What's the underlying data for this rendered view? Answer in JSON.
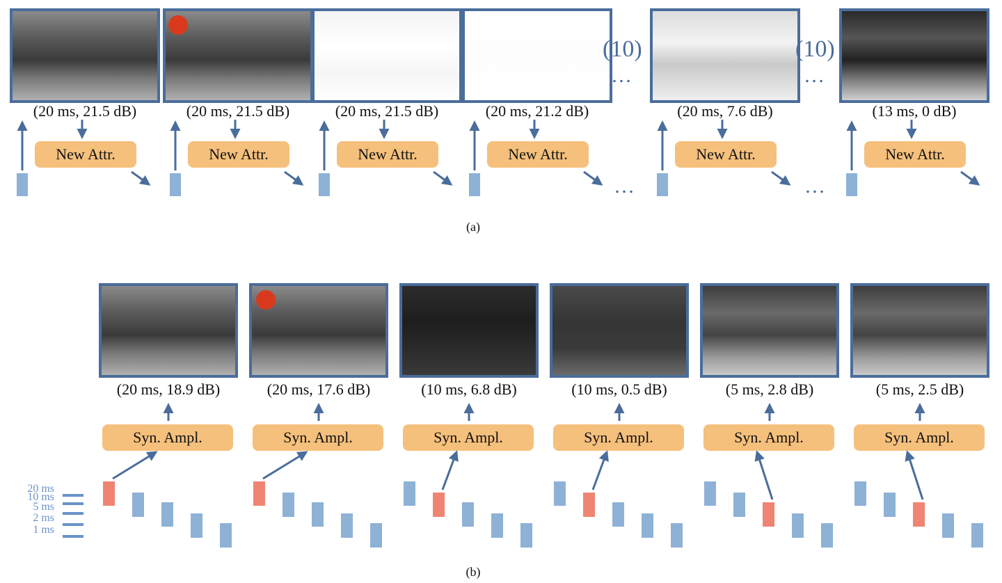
{
  "panel_a": {
    "label": "(a)",
    "frames": [
      {
        "caption": "(20 ms, 21.5 dB)",
        "box": "New Attr.",
        "tone": "normal",
        "marker": false
      },
      {
        "caption": "(20 ms, 21.5 dB)",
        "box": "New Attr.",
        "tone": "normal",
        "marker": true
      },
      {
        "caption": "(20 ms, 21.5 dB)",
        "box": "New Attr.",
        "tone": "bright",
        "marker": false
      },
      {
        "caption": "(20 ms, 21.2 dB)",
        "box": "New Attr.",
        "tone": "white",
        "marker": false
      },
      {
        "caption": "(20 ms, 7.6 dB)",
        "box": "New Attr.",
        "tone": "washed",
        "marker": false
      },
      {
        "caption": "(13 ms, 0 dB)",
        "box": "New Attr.",
        "tone": "contrast",
        "marker": false
      }
    ],
    "repeat_label": "(10)",
    "ellipsis": "…"
  },
  "panel_b": {
    "label": "(b)",
    "frames": [
      {
        "caption": "(20 ms, 18.9 dB)",
        "box": "Syn. Ampl.",
        "tone": "normal",
        "marker": false,
        "selected": 0
      },
      {
        "caption": "(20 ms, 17.6 dB)",
        "box": "Syn. Ampl.",
        "tone": "normal",
        "marker": true,
        "selected": 0
      },
      {
        "caption": "(10 ms, 6.8 dB)",
        "box": "Syn. Ampl.",
        "tone": "dark",
        "marker": false,
        "selected": 1
      },
      {
        "caption": "(10 ms, 0.5 dB)",
        "box": "Syn. Ampl.",
        "tone": "dim",
        "marker": false,
        "selected": 1
      },
      {
        "caption": "(5 ms, 2.8 dB)",
        "box": "Syn. Ampl.",
        "tone": "lit",
        "marker": false,
        "selected": 2
      },
      {
        "caption": "(5 ms, 2.5 dB)",
        "box": "Syn. Ampl.",
        "tone": "lit",
        "marker": false,
        "selected": 2
      }
    ],
    "exposure_scale": [
      "20 ms",
      "10 ms",
      "5 ms",
      "2 ms",
      "1 ms"
    ]
  },
  "colors": {
    "frame_border": "#4a6d9b",
    "box_fill": "#f5c07c",
    "bar": "#8eb1d6",
    "bar_selected": "#ef8473",
    "marker": "#d93a1e"
  }
}
